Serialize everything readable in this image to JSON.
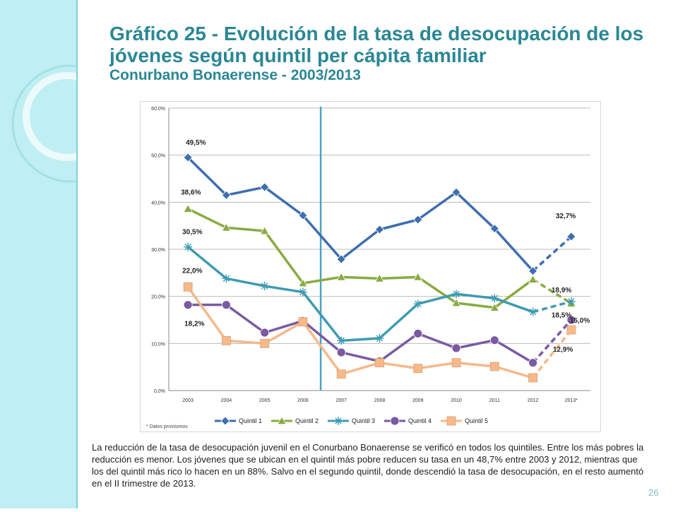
{
  "slide": {
    "title_line1": "Gráfico 25 - Evolución de la tasa de desocupación de los",
    "title_line2": "jóvenes según quintil per cápita familiar",
    "title_line3": "Conurbano Bonaerense - 2003/2013",
    "description": "La reducción de la tasa de desocupación juvenil en el Conurbano Bonaerense se verificó en todos los quintiles. Entre los más pobres la reducción es menor. Los jóvenes que se ubican en el quintil más pobre reducen su tasa en un 48,7% entre 2003 y 2012, mientras que los del quintil más rico lo hacen en un 88%. Salvo en el segundo quintil, donde descendió la tasa de desocupación, en el resto aumentó en el II trimestre de 2013.",
    "page_number": "26",
    "colors": {
      "title": "#2a8795",
      "band": "#bfeff3"
    }
  },
  "chart_data": {
    "type": "line",
    "categories": [
      "2003",
      "2004",
      "2005",
      "2006",
      "2007",
      "2008",
      "2009",
      "2010",
      "2011",
      "2012",
      "2013*"
    ],
    "y_ticks": [
      "0,0%",
      "10,0%",
      "20,0%",
      "30,0%",
      "40,0%",
      "50,0%",
      "60,0%"
    ],
    "ylim": [
      0,
      60
    ],
    "grid": true,
    "legend_position": "bottom",
    "footnote": "* Datos provisorios",
    "dashed_last_segment": true,
    "series": [
      {
        "name": "Quintil 1",
        "color": "#3e6eb0",
        "marker": "diamond",
        "values": [
          49.5,
          41.5,
          43.2,
          37.2,
          27.9,
          34.2,
          36.3,
          42.1,
          34.4,
          25.4,
          32.7
        ]
      },
      {
        "name": "Quintil 2",
        "color": "#8aaa41",
        "marker": "triangle",
        "values": [
          38.6,
          34.6,
          33.9,
          22.8,
          24.1,
          23.8,
          24.1,
          18.6,
          17.6,
          23.6,
          18.5
        ]
      },
      {
        "name": "Quintil 3",
        "color": "#3e9bb2",
        "marker": "star",
        "values": [
          30.5,
          23.8,
          22.2,
          20.9,
          10.6,
          11.1,
          18.4,
          20.5,
          19.6,
          16.7,
          18.9
        ]
      },
      {
        "name": "Quintil 4",
        "color": "#7a5aa3",
        "marker": "circle",
        "values": [
          18.2,
          18.2,
          12.3,
          14.8,
          8.1,
          6.2,
          12.1,
          9.0,
          10.7,
          5.9,
          15.0
        ]
      },
      {
        "name": "Quintil 5",
        "color": "#f5b98a",
        "marker": "square",
        "values": [
          22.0,
          10.6,
          10.0,
          14.6,
          3.5,
          5.9,
          4.7,
          5.9,
          5.1,
          2.7,
          12.9
        ]
      }
    ],
    "data_labels": [
      {
        "text": "49,5%",
        "series": 0,
        "index": 0,
        "dx": -3,
        "dy": -18
      },
      {
        "text": "38,6%",
        "series": 1,
        "index": 0,
        "dx": -10,
        "dy": -20
      },
      {
        "text": "30,5%",
        "series": 2,
        "index": 0,
        "dx": -8,
        "dy": -18
      },
      {
        "text": "22,0%",
        "series": 4,
        "index": 0,
        "dx": -8,
        "dy": -20
      },
      {
        "text": "18,2%",
        "series": 3,
        "index": 0,
        "dx": -5,
        "dy": 30
      },
      {
        "text": "32,7%",
        "series": 0,
        "index": 10,
        "dx": -22,
        "dy": -26
      },
      {
        "text": "18,9%",
        "series": 2,
        "index": 10,
        "dx": -28,
        "dy": -13
      },
      {
        "text": "18,5%",
        "series": 1,
        "index": 10,
        "dx": -28,
        "dy": 20
      },
      {
        "text": "15,0%",
        "series": 3,
        "index": 10,
        "dx": -2,
        "dy": 4
      },
      {
        "text": "12,9%",
        "series": 4,
        "index": 10,
        "dx": -26,
        "dy": 31
      }
    ]
  }
}
